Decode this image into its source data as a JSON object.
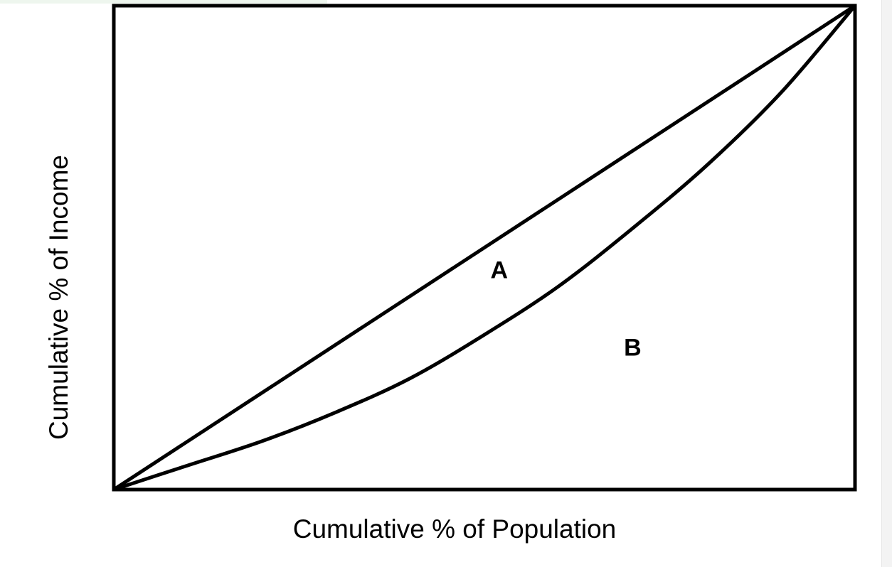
{
  "chart_data": {
    "type": "line",
    "title": "",
    "xlabel": "Cumulative % of Population",
    "ylabel": "Cumulative % of Income",
    "xlim": [
      0,
      100
    ],
    "ylim": [
      0,
      100
    ],
    "grid": false,
    "series": [
      {
        "x": [
          0,
          100
        ],
        "y": [
          0,
          100
        ]
      },
      {
        "x": [
          0,
          10,
          20,
          30,
          40,
          50,
          60,
          70,
          80,
          90,
          100
        ],
        "y": [
          0,
          5,
          10,
          16,
          23,
          32,
          42,
          54,
          67,
          82,
          100
        ]
      }
    ],
    "annotations": [
      {
        "text": "A",
        "x": 52,
        "y": 45
      },
      {
        "text": "B",
        "x": 70,
        "y": 29
      }
    ]
  },
  "colors": {
    "line": "#000000",
    "background": "#ffffff"
  }
}
